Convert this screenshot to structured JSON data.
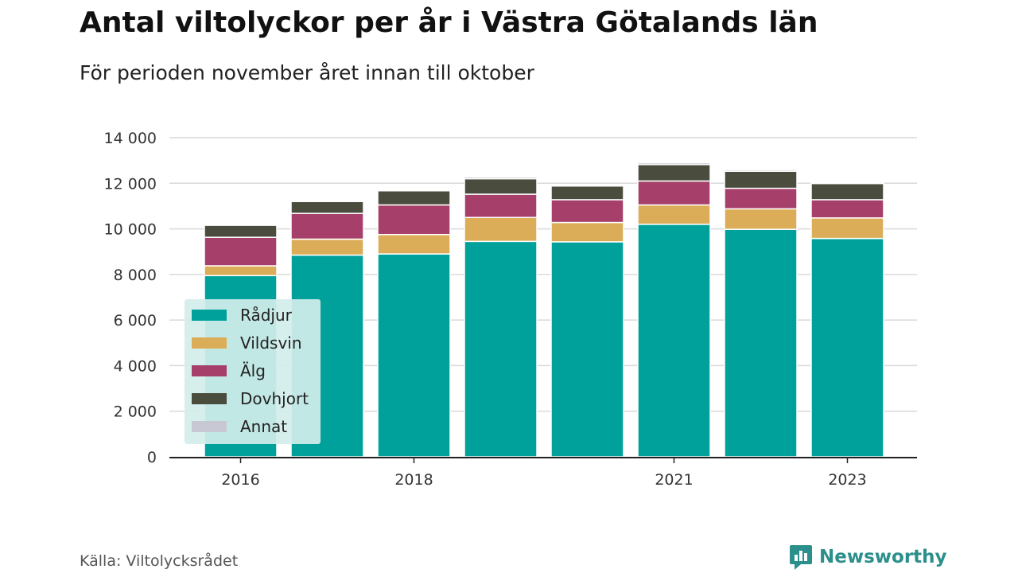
{
  "title": "Antal viltolyckor per år i Västra Götalands län",
  "subtitle": "För perioden november året innan till oktober",
  "source": "Källa: Viltolycksrådet",
  "brand": {
    "name": "Newsworthy",
    "icon": "newsworthy-logo-icon",
    "color": "#2b8f8c"
  },
  "chart_data": {
    "type": "bar",
    "stacked": true,
    "categories": [
      "2016",
      "2017",
      "2018",
      "2019",
      "2020",
      "2021",
      "2022",
      "2023"
    ],
    "x_tick_labels": [
      "2016",
      "2018",
      "2021",
      "2023"
    ],
    "series": [
      {
        "name": "Rådjur",
        "color": "#00a19a",
        "values": [
          7950,
          8850,
          8900,
          9450,
          9430,
          10200,
          9980,
          9580
        ]
      },
      {
        "name": "Vildsvin",
        "color": "#dbad58",
        "values": [
          430,
          700,
          850,
          1050,
          850,
          850,
          900,
          900
        ]
      },
      {
        "name": "Älg",
        "color": "#a63f69",
        "values": [
          1250,
          1130,
          1300,
          1020,
          1000,
          1050,
          900,
          800
        ]
      },
      {
        "name": "Dovhjort",
        "color": "#4a4d3e",
        "values": [
          530,
          520,
          620,
          680,
          600,
          720,
          750,
          710
        ]
      },
      {
        "name": "Annat",
        "color": "#c8c8d4",
        "values": [
          20,
          30,
          50,
          80,
          50,
          80,
          70,
          50
        ]
      }
    ],
    "ylim": [
      0,
      14000
    ],
    "y_ticks": [
      "0",
      "2 000",
      "4 000",
      "6 000",
      "8 000",
      "10 000",
      "12 000",
      "14 000"
    ],
    "y_tick_values": [
      0,
      2000,
      4000,
      6000,
      8000,
      10000,
      12000,
      14000
    ],
    "grid": true,
    "legend_position": "bottom-left"
  }
}
